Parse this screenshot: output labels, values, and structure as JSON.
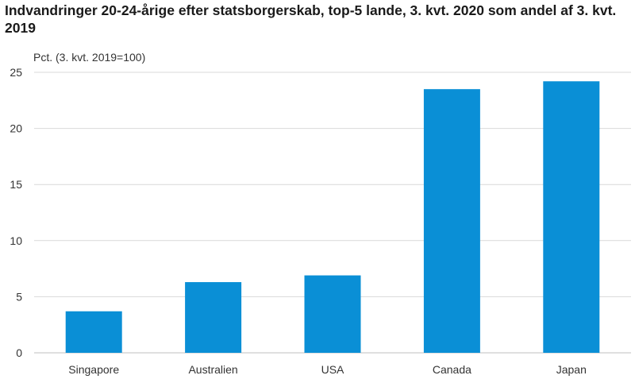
{
  "chart_data": {
    "type": "bar",
    "title": "Indvandringer 20-24-årige efter statsborgerskab, top-5 lande, 3. kvt. 2020 som andel af 3. kvt. 2019",
    "ylabel": "Pct. (3. kvt. 2019=100)",
    "xlabel": "",
    "categories": [
      "Singapore",
      "Australien",
      "USA",
      "Canada",
      "Japan"
    ],
    "values": [
      3.7,
      6.3,
      6.9,
      23.5,
      24.2
    ],
    "ylim": [
      0,
      25
    ],
    "yticks": [
      0,
      5,
      10,
      15,
      20,
      25
    ],
    "grid": "horizontal",
    "bar_color": "#0a8fd6",
    "grid_color": "#d9d9d9"
  }
}
